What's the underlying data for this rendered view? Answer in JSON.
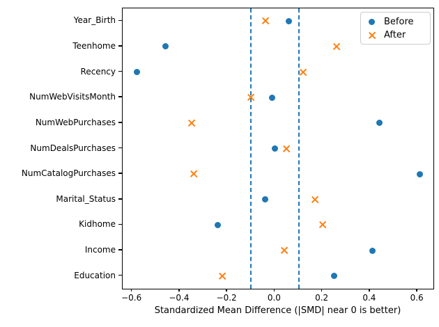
{
  "figure": {
    "background": "#ffffff",
    "axis_color": "#000000"
  },
  "chart_data": {
    "type": "scatter",
    "title": "",
    "xlabel": "Standardized Mean Difference (|SMD| near 0 is better)",
    "ylabel": "",
    "categories": [
      "Year_Birth",
      "Teenhome",
      "Recency",
      "NumWebVisitsMonth",
      "NumWebPurchases",
      "NumDealsPurchases",
      "NumCatalogPurchases",
      "Marital_Status",
      "Kidhome",
      "Income",
      "Education"
    ],
    "series": [
      {
        "name": "Before",
        "marker": "circle",
        "color": "#1f77b4",
        "values": [
          0.06,
          -0.46,
          -0.58,
          -0.01,
          0.44,
          0.0,
          0.61,
          -0.04,
          -0.24,
          0.41,
          0.25
        ]
      },
      {
        "name": "After",
        "marker": "x",
        "color": "#ff7f0e",
        "values": [
          -0.04,
          0.26,
          0.12,
          -0.1,
          -0.35,
          0.05,
          -0.34,
          0.17,
          0.2,
          0.04,
          -0.22
        ]
      }
    ],
    "reference_lines": {
      "values": [
        -0.1,
        0.1
      ],
      "style": "dashed",
      "color": "#1f77b4"
    },
    "xlim": [
      -0.64,
      0.67
    ],
    "xticks": [
      -0.6,
      -0.4,
      -0.2,
      0.0,
      0.2,
      0.4,
      0.6
    ],
    "xtick_labels": [
      "−0.6",
      "−0.4",
      "−0.2",
      "0.0",
      "0.2",
      "0.4",
      "0.6"
    ],
    "grid": false,
    "legend": {
      "position": "upper right",
      "entries": [
        "Before",
        "After"
      ]
    }
  }
}
